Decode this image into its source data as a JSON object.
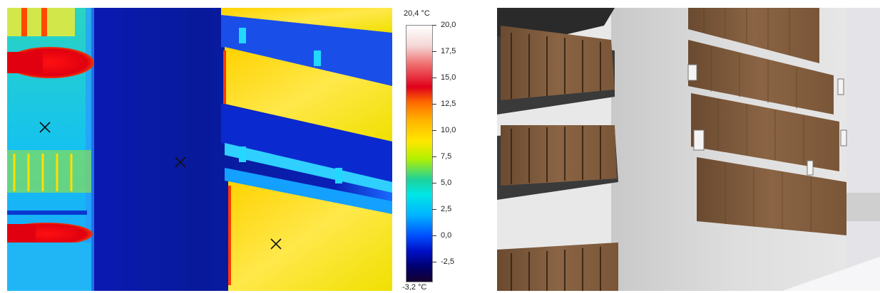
{
  "thermal": {
    "scale": {
      "max_label": "20,4 °C",
      "min_label": "-3,2 °C",
      "ticks": [
        "20,0",
        "17,5",
        "15,0",
        "12,5",
        "10,0",
        "7,5",
        "5,0",
        "2,5",
        "0,0",
        "-2,5"
      ]
    },
    "markers": [
      "marker-1",
      "marker-2",
      "marker-3"
    ]
  },
  "photo": {
    "subject": "apartment-building-facade"
  }
}
